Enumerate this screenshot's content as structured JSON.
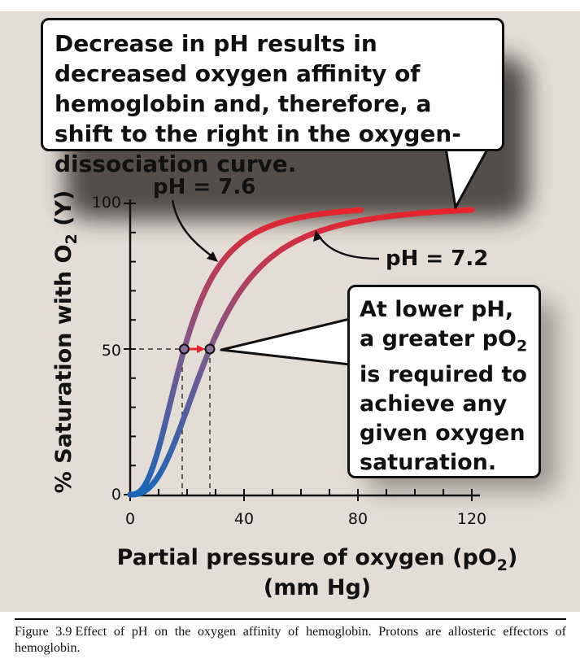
{
  "callout_top": {
    "text": "Decrease in pH results in decreased oxygen affinity of hemoglobin and, therefore, a shift to the right in the oxygen-dissociation curve."
  },
  "callout_right": {
    "text": "At lower pH, a greater pO2 is required to achieve any given oxygen saturation."
  },
  "caption": {
    "label": "Figure 3.9",
    "text": "Effect of pH on the oxygen affinity of hemoglobin. Protons are allosteric effectors of hemoglobin."
  },
  "colors": {
    "panel_bg": "#e4ddd5",
    "curve_high": "#e8232b",
    "curve_low": "#1a66b8",
    "mid_arrow": "#e8232b"
  },
  "chart_data": {
    "type": "line",
    "xlabel": "Partial pressure of oxygen (pO2) (mm Hg)",
    "ylabel": "% Saturation with O2 (Y)",
    "xlim": [
      0,
      120
    ],
    "ylim": [
      0,
      100
    ],
    "x_ticks": [
      0,
      40,
      80,
      120
    ],
    "y_ticks": [
      0,
      50,
      100
    ],
    "grid": false,
    "series": [
      {
        "name": "pH = 7.6",
        "p50": 19,
        "hill": 2.6,
        "x_max": 81
      },
      {
        "name": "pH = 7.2",
        "p50": 28,
        "hill": 2.6,
        "x_max": 120
      }
    ],
    "markers": [
      {
        "x": 19,
        "y": 50
      },
      {
        "x": 28,
        "y": 50
      }
    ]
  }
}
